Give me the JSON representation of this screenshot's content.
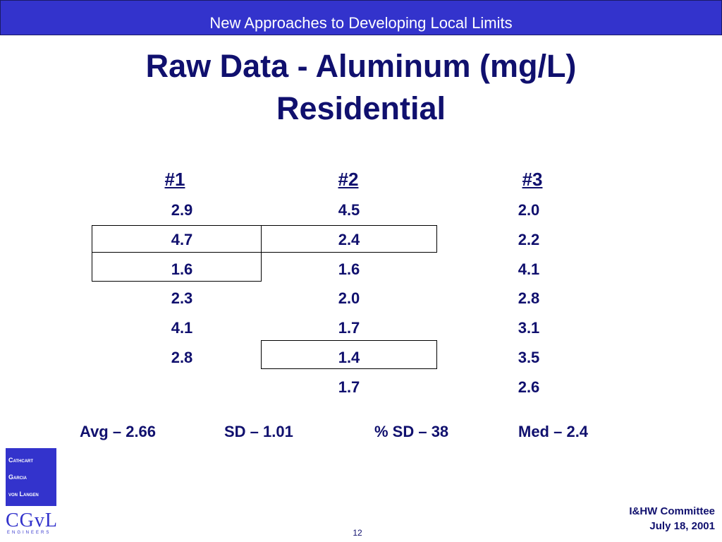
{
  "header": {
    "banner": "New Approaches to Developing Local Limits",
    "title": [
      "Raw Data - Aluminum (mg/L)",
      "Residential"
    ]
  },
  "table": {
    "columns": [
      {
        "header": "#1",
        "values": [
          "2.9",
          "4.7",
          "1.6",
          "2.3",
          "4.1",
          "2.8"
        ]
      },
      {
        "header": "#2",
        "values": [
          "4.5",
          "2.4",
          "1.6",
          "2.0",
          "1.7",
          "1.4",
          "1.7"
        ]
      },
      {
        "header": "#3",
        "values": [
          "2.0",
          "2.2",
          "4.1",
          "2.8",
          "3.1",
          "3.5",
          "2.6"
        ]
      }
    ]
  },
  "stats": [
    "Avg – 2.66",
    "SD – 1.01",
    "% SD – 38",
    "Med – 2.4"
  ],
  "logo": {
    "lines": [
      "Cathcart",
      "Garcia",
      "von Langen"
    ],
    "mark": "CGvL",
    "sub": "ENGINEERS"
  },
  "footer": {
    "lines": [
      "I&HW Committee",
      "July 18, 2001"
    ],
    "page": "12"
  }
}
